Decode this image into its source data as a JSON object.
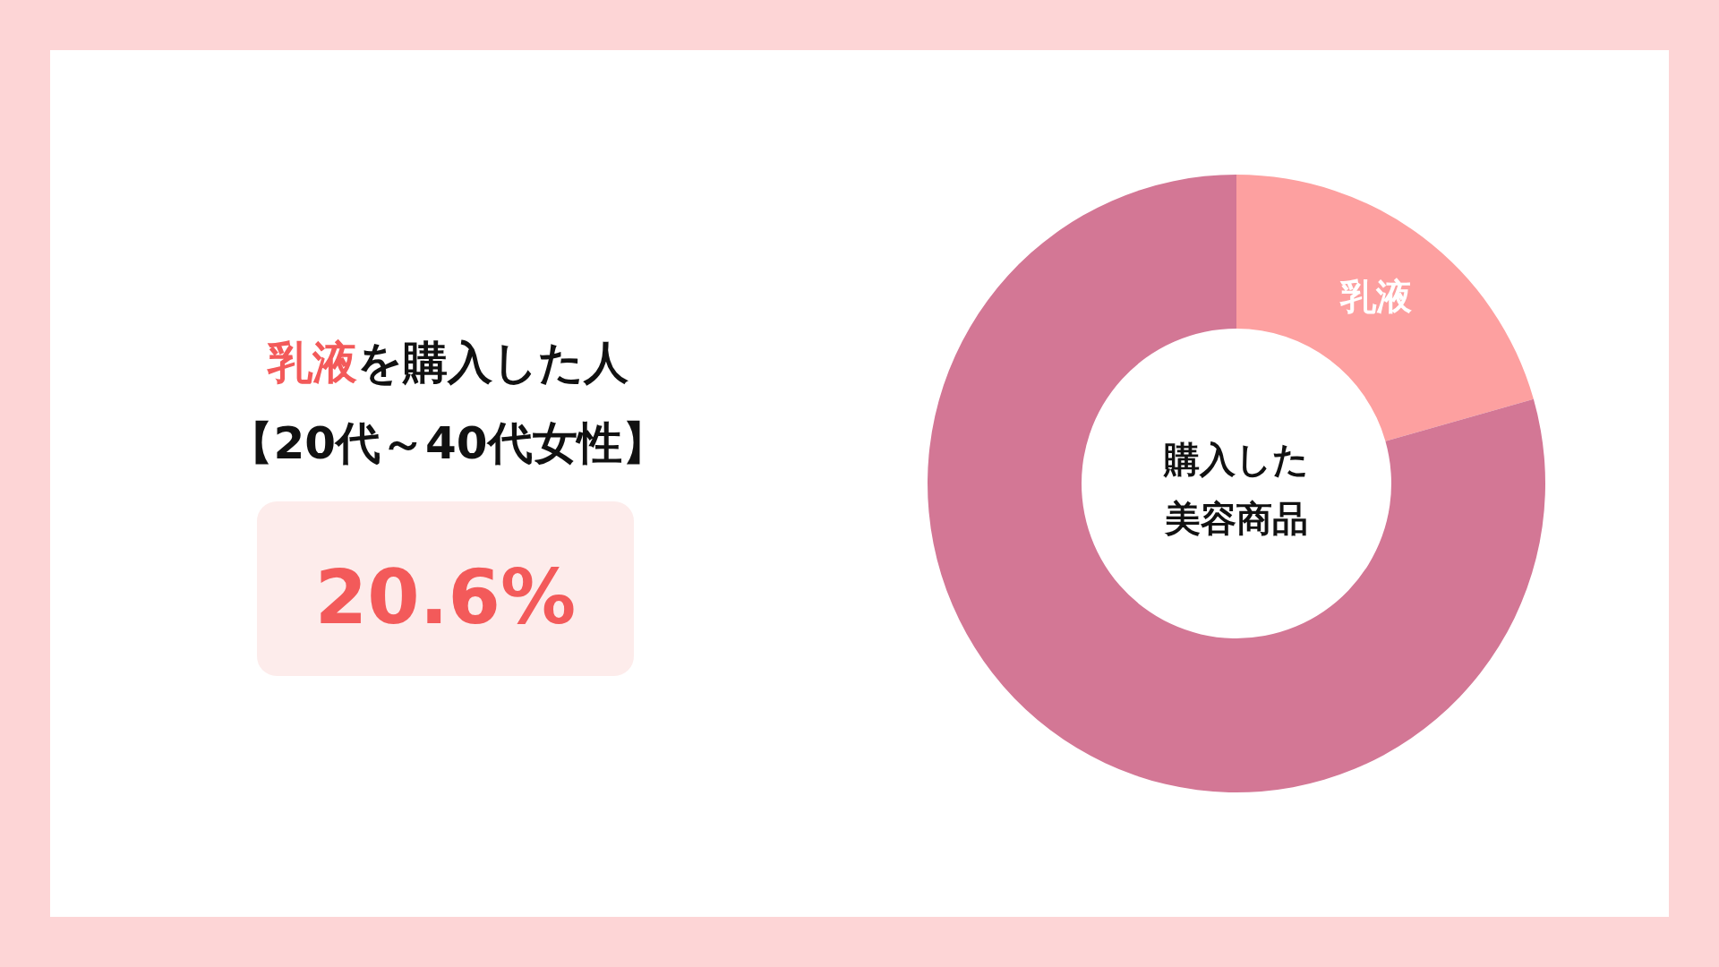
{
  "chart_data": {
    "type": "donut",
    "title": "乳液を購入した人",
    "subtitle": "【20代～40代女性】",
    "categories": [
      "乳液",
      null
    ],
    "values": [
      20.6,
      79.4
    ],
    "colors": [
      "#fda0a0",
      "#d37795"
    ],
    "annotations": [
      "20.6%",
      "購入した美容商品"
    ]
  }
}
